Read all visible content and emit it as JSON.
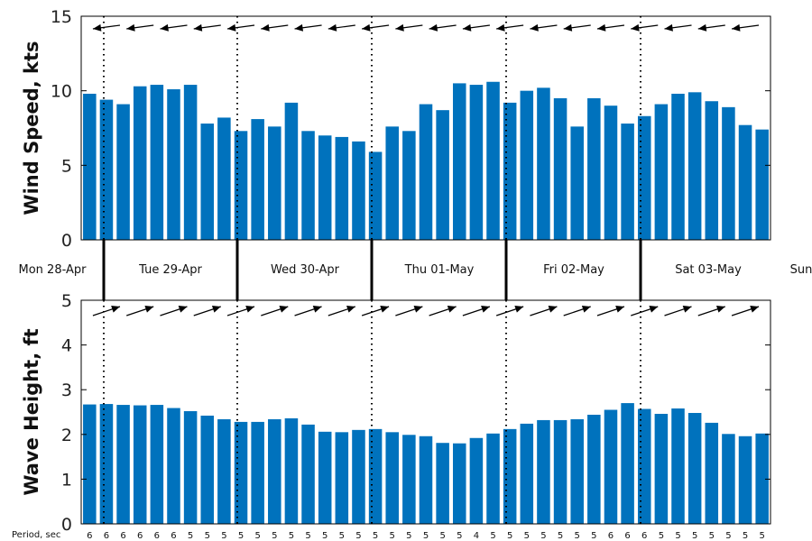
{
  "colors": {
    "bar": "#0072BD",
    "axis": "#000000",
    "arrow": "#000000"
  },
  "chart_data": [
    {
      "type": "bar",
      "ylabel": "Wind Speed, kts",
      "ylim": [
        0,
        15
      ],
      "yticks": [
        0,
        5,
        10,
        15
      ],
      "values": [
        9.8,
        9.4,
        9.1,
        10.3,
        10.4,
        10.1,
        10.4,
        7.8,
        8.2,
        7.3,
        8.1,
        7.6,
        9.2,
        7.3,
        7.0,
        6.9,
        6.6,
        5.9,
        7.6,
        7.3,
        9.1,
        8.7,
        10.5,
        10.4,
        10.6,
        9.2,
        10.0,
        10.2,
        9.5,
        7.6,
        9.5,
        9.0,
        7.8,
        8.3,
        9.1,
        9.8,
        9.9,
        9.3,
        8.9,
        7.7,
        7.4
      ],
      "direction_arrows": "wind direction arrows pointing left (westward)",
      "grid": false
    },
    {
      "type": "bar",
      "ylabel": "Wave Height, ft",
      "ylim": [
        0,
        5
      ],
      "yticks": [
        0,
        1,
        2,
        3,
        4,
        5
      ],
      "values": [
        2.67,
        2.68,
        2.66,
        2.65,
        2.66,
        2.59,
        2.52,
        2.42,
        2.34,
        2.28,
        2.28,
        2.34,
        2.36,
        2.22,
        2.06,
        2.05,
        2.1,
        2.12,
        2.05,
        1.99,
        1.96,
        1.81,
        1.8,
        1.92,
        2.02,
        2.12,
        2.24,
        2.32,
        2.32,
        2.34,
        2.44,
        2.55,
        2.7,
        2.57,
        2.46,
        2.58,
        2.48,
        2.26,
        2.01,
        1.96,
        2.02
      ],
      "direction_arrows": "wave direction arrows pointing right (eastward)",
      "period_label": "Period, sec",
      "periods": [
        "6",
        "6",
        "6",
        "6",
        "6",
        "6",
        "5",
        "5",
        "5",
        "5",
        "5",
        "5",
        "5",
        "5",
        "5",
        "5",
        "5",
        "5",
        "5",
        "5",
        "5",
        "5",
        "5",
        "4",
        "5",
        "5",
        "5",
        "5",
        "5",
        "5",
        "5",
        "6",
        "6",
        "6",
        "5",
        "5",
        "5",
        "5",
        "5",
        "5",
        "5"
      ],
      "grid": false
    }
  ],
  "days": [
    "Mon 28-Apr",
    "Tue 29-Apr",
    "Wed 30-Apr",
    "Thu 01-May",
    "Fri 02-May",
    "Sat 03-May",
    "Sun"
  ]
}
